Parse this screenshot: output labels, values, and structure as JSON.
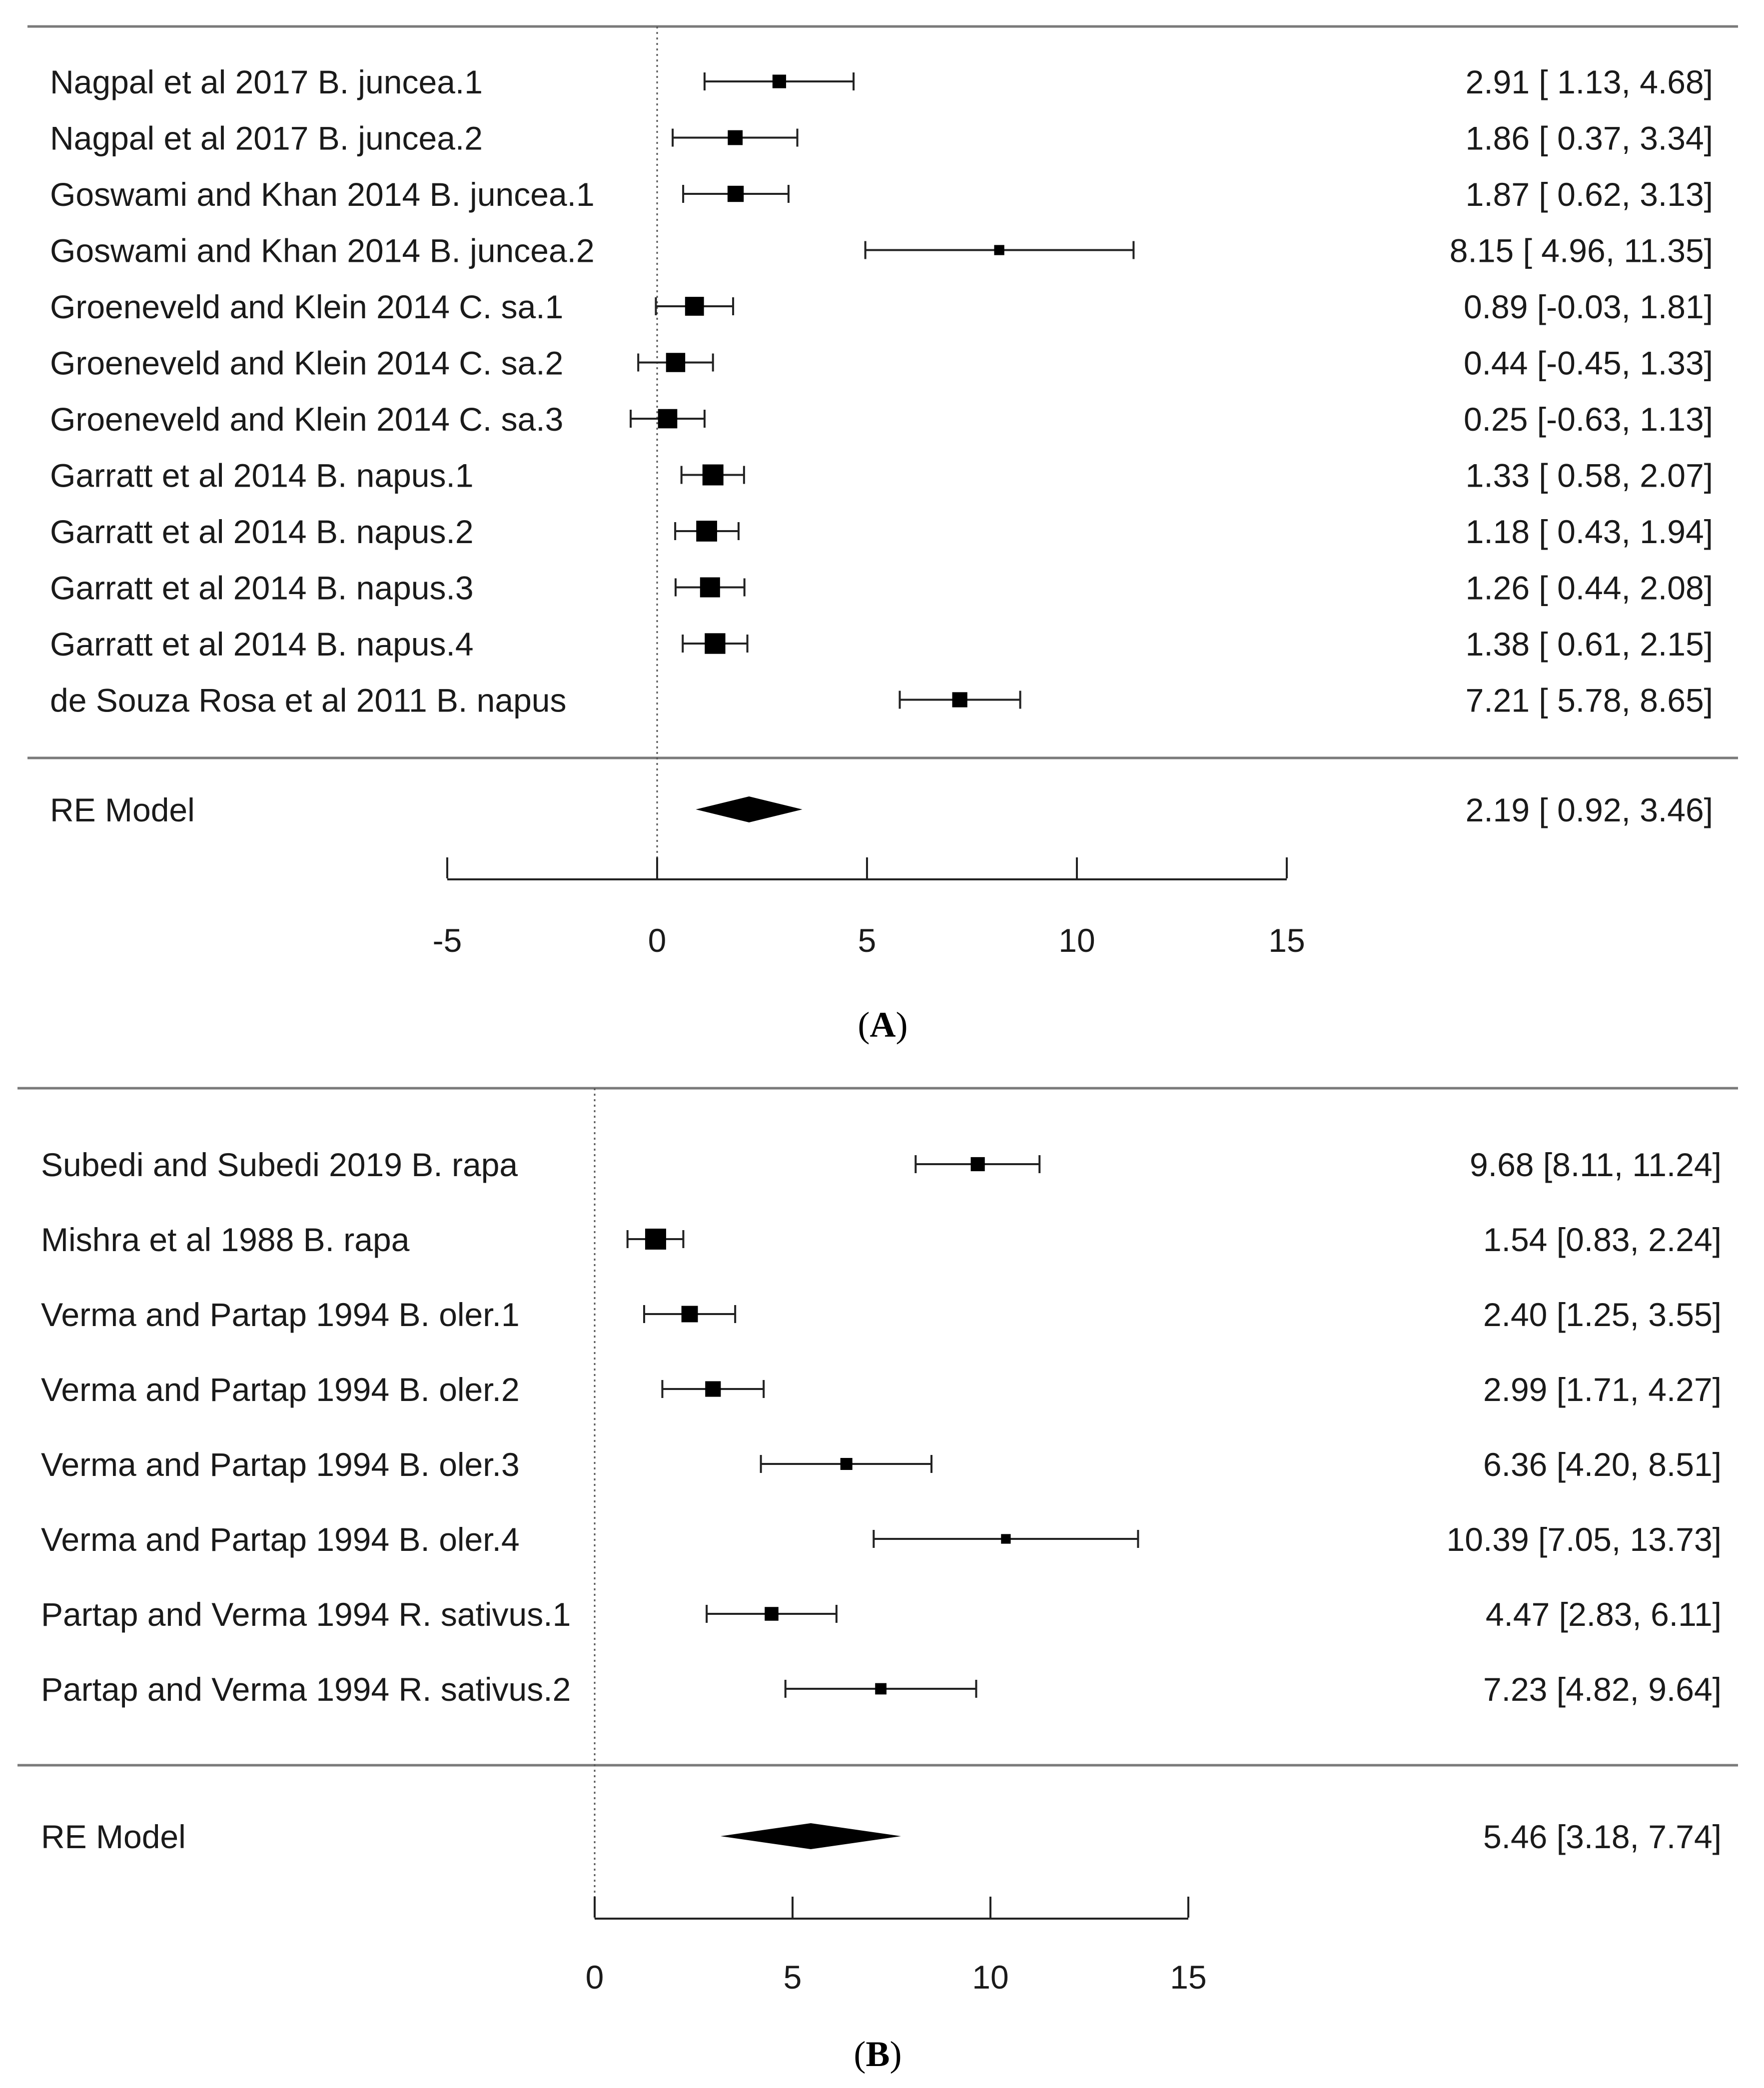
{
  "chart_data": [
    {
      "type": "forest",
      "panel_label": "(A)",
      "panel_letter": "A",
      "xlim": [
        -5,
        15
      ],
      "xticks": [
        -5,
        0,
        5,
        10,
        15
      ],
      "xtick_labels": [
        "-5",
        "0",
        "5",
        "10",
        "15"
      ],
      "studies": [
        {
          "label": "Nagpal et al 2017 B. juncea.1",
          "est": 2.91,
          "lo": 1.13,
          "hi": 4.68,
          "text": "2.91 [ 1.13,  4.68]"
        },
        {
          "label": "Nagpal et al 2017 B. juncea.2",
          "est": 1.86,
          "lo": 0.37,
          "hi": 3.34,
          "text": "1.86 [ 0.37,  3.34]"
        },
        {
          "label": "Goswami and Khan 2014 B. juncea.1",
          "est": 1.87,
          "lo": 0.62,
          "hi": 3.13,
          "text": "1.87 [ 0.62,  3.13]"
        },
        {
          "label": "Goswami and Khan 2014 B. juncea.2",
          "est": 8.15,
          "lo": 4.96,
          "hi": 11.35,
          "text": "8.15 [ 4.96, 11.35]"
        },
        {
          "label": "Groeneveld and Klein 2014 C. sa.1",
          "est": 0.89,
          "lo": -0.03,
          "hi": 1.81,
          "text": "0.89 [-0.03,  1.81]"
        },
        {
          "label": "Groeneveld and Klein 2014 C. sa.2",
          "est": 0.44,
          "lo": -0.45,
          "hi": 1.33,
          "text": "0.44 [-0.45,  1.33]"
        },
        {
          "label": "Groeneveld and Klein 2014 C. sa.3",
          "est": 0.25,
          "lo": -0.63,
          "hi": 1.13,
          "text": "0.25 [-0.63,  1.13]"
        },
        {
          "label": "Garratt et al 2014 B. napus.1",
          "est": 1.33,
          "lo": 0.58,
          "hi": 2.07,
          "text": "1.33 [ 0.58,  2.07]"
        },
        {
          "label": "Garratt et al 2014 B. napus.2",
          "est": 1.18,
          "lo": 0.43,
          "hi": 1.94,
          "text": "1.18 [ 0.43,  1.94]"
        },
        {
          "label": "Garratt et al 2014 B. napus.3",
          "est": 1.26,
          "lo": 0.44,
          "hi": 2.08,
          "text": "1.26 [ 0.44,  2.08]"
        },
        {
          "label": "Garratt et al 2014 B. napus.4",
          "est": 1.38,
          "lo": 0.61,
          "hi": 2.15,
          "text": "1.38 [ 0.61,  2.15]"
        },
        {
          "label": "de Souza Rosa et al 2011 B. napus",
          "est": 7.21,
          "lo": 5.78,
          "hi": 8.65,
          "text": "7.21 [ 5.78,  8.65]"
        }
      ],
      "summary": {
        "label": "RE Model",
        "est": 2.19,
        "lo": 0.92,
        "hi": 3.46,
        "text": "2.19 [ 0.92,  3.46]"
      }
    },
    {
      "type": "forest",
      "panel_label": "(B)",
      "panel_letter": "B",
      "xlim": [
        0,
        15
      ],
      "xticks": [
        0,
        5,
        10,
        15
      ],
      "xtick_labels": [
        "0",
        "5",
        "10",
        "15"
      ],
      "studies": [
        {
          "label": "Subedi and Subedi 2019 B. rapa",
          "est": 9.68,
          "lo": 8.11,
          "hi": 11.24,
          "text": "9.68 [8.11, 11.24]"
        },
        {
          "label": "Mishra et al 1988 B. rapa",
          "est": 1.54,
          "lo": 0.83,
          "hi": 2.24,
          "text": "1.54 [0.83,  2.24]"
        },
        {
          "label": "Verma and Partap 1994 B. oler.1",
          "est": 2.4,
          "lo": 1.25,
          "hi": 3.55,
          "text": "2.40 [1.25,  3.55]"
        },
        {
          "label": "Verma and Partap 1994 B. oler.2",
          "est": 2.99,
          "lo": 1.71,
          "hi": 4.27,
          "text": "2.99 [1.71,  4.27]"
        },
        {
          "label": "Verma and Partap 1994 B. oler.3",
          "est": 6.36,
          "lo": 4.2,
          "hi": 8.51,
          "text": "6.36 [4.20,  8.51]"
        },
        {
          "label": "Verma and Partap 1994 B. oler.4",
          "est": 10.39,
          "lo": 7.05,
          "hi": 13.73,
          "text": "10.39 [7.05, 13.73]"
        },
        {
          "label": "Partap and Verma 1994 R. sativus.1",
          "est": 4.47,
          "lo": 2.83,
          "hi": 6.11,
          "text": "4.47 [2.83,  6.11]"
        },
        {
          "label": "Partap and Verma 1994 R. sativus.2",
          "est": 7.23,
          "lo": 4.82,
          "hi": 9.64,
          "text": "7.23 [4.82,  9.64]"
        }
      ],
      "summary": {
        "label": "RE Model",
        "est": 5.46,
        "lo": 3.18,
        "hi": 7.74,
        "text": "5.46 [3.18,  7.74]"
      }
    }
  ]
}
